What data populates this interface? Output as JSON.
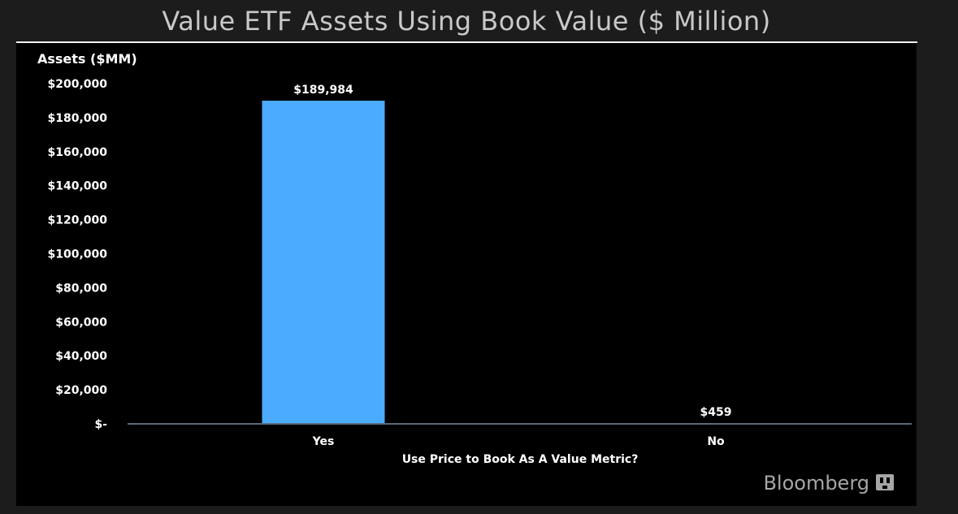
{
  "colors": {
    "background": "#1c1c1c",
    "panel": "#000000",
    "bar": "#4aabff",
    "baseline": "#5a6a7a",
    "text": "#ffffff",
    "title": "#c9c9c9",
    "source": "#a6a6a6"
  },
  "source": {
    "name": "Bloomberg",
    "icon": "bloomberg-terminal-icon"
  },
  "chart_data": {
    "type": "bar",
    "title": "Value ETF Assets Using Book Value ($ Million)",
    "ylabel": "Assets ($MM)",
    "xlabel": "Use Price to Book As A Value Metric?",
    "categories": [
      "Yes",
      "No"
    ],
    "values": [
      189984,
      459
    ],
    "data_labels": [
      "$189,984",
      "$459"
    ],
    "ylim": [
      0,
      200000
    ],
    "yticks": [
      0,
      20000,
      40000,
      60000,
      80000,
      100000,
      120000,
      140000,
      160000,
      180000,
      200000
    ],
    "ytick_labels": [
      "$-",
      "$20,000",
      "$40,000",
      "$60,000",
      "$80,000",
      "$100,000",
      "$120,000",
      "$140,000",
      "$160,000",
      "$180,000",
      "$200,000"
    ],
    "grid": false,
    "legend": "none"
  }
}
